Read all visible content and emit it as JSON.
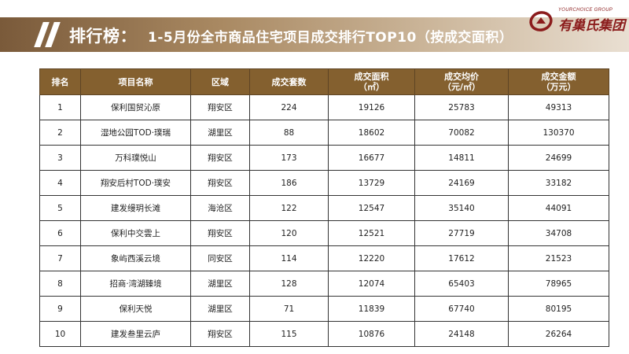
{
  "header": {
    "title_main": "排行榜",
    "colon": "：",
    "title_sub": "1-5月份全市商品住宅项目成交排行TOP10（按成交面积）"
  },
  "logo": {
    "en": "YOURCHOICE GROUP",
    "cn": "有巢氏集团",
    "accent_color": "#8b1c1c"
  },
  "colors": {
    "header_bg": "#84602f",
    "band_start": "#7a5a3a"
  },
  "table": {
    "headers": [
      {
        "l1": "排名",
        "l2": ""
      },
      {
        "l1": "项目名称",
        "l2": ""
      },
      {
        "l1": "区域",
        "l2": ""
      },
      {
        "l1": "成交套数",
        "l2": ""
      },
      {
        "l1": "成交面积",
        "l2": "（㎡）"
      },
      {
        "l1": "成交均价",
        "l2": "（元/㎡）"
      },
      {
        "l1": "成交金额",
        "l2": "（万元）"
      }
    ],
    "rows": [
      [
        "1",
        "保利国贸沁原",
        "翔安区",
        "224",
        "19126",
        "25783",
        "49313"
      ],
      [
        "2",
        "湿地公园TOD·璞瑞",
        "湖里区",
        "88",
        "18602",
        "70082",
        "130370"
      ],
      [
        "3",
        "万科璞悦山",
        "翔安区",
        "173",
        "16677",
        "14811",
        "24699"
      ],
      [
        "4",
        "翔安后村TOD·璞安",
        "翔安区",
        "186",
        "13729",
        "24169",
        "33182"
      ],
      [
        "5",
        "建发缦玥长滩",
        "海沧区",
        "122",
        "12547",
        "35140",
        "44091"
      ],
      [
        "6",
        "保利中交雲上",
        "翔安区",
        "120",
        "12521",
        "27719",
        "34708"
      ],
      [
        "7",
        "象屿西溪云境",
        "同安区",
        "114",
        "12220",
        "17612",
        "21523"
      ],
      [
        "8",
        "招商·湾湖臻境",
        "湖里区",
        "128",
        "12074",
        "65403",
        "78965"
      ],
      [
        "9",
        "保利天悦",
        "湖里区",
        "71",
        "11839",
        "67740",
        "80195"
      ],
      [
        "10",
        "建发叁里云庐",
        "翔安区",
        "115",
        "10876",
        "24148",
        "26264"
      ]
    ]
  }
}
